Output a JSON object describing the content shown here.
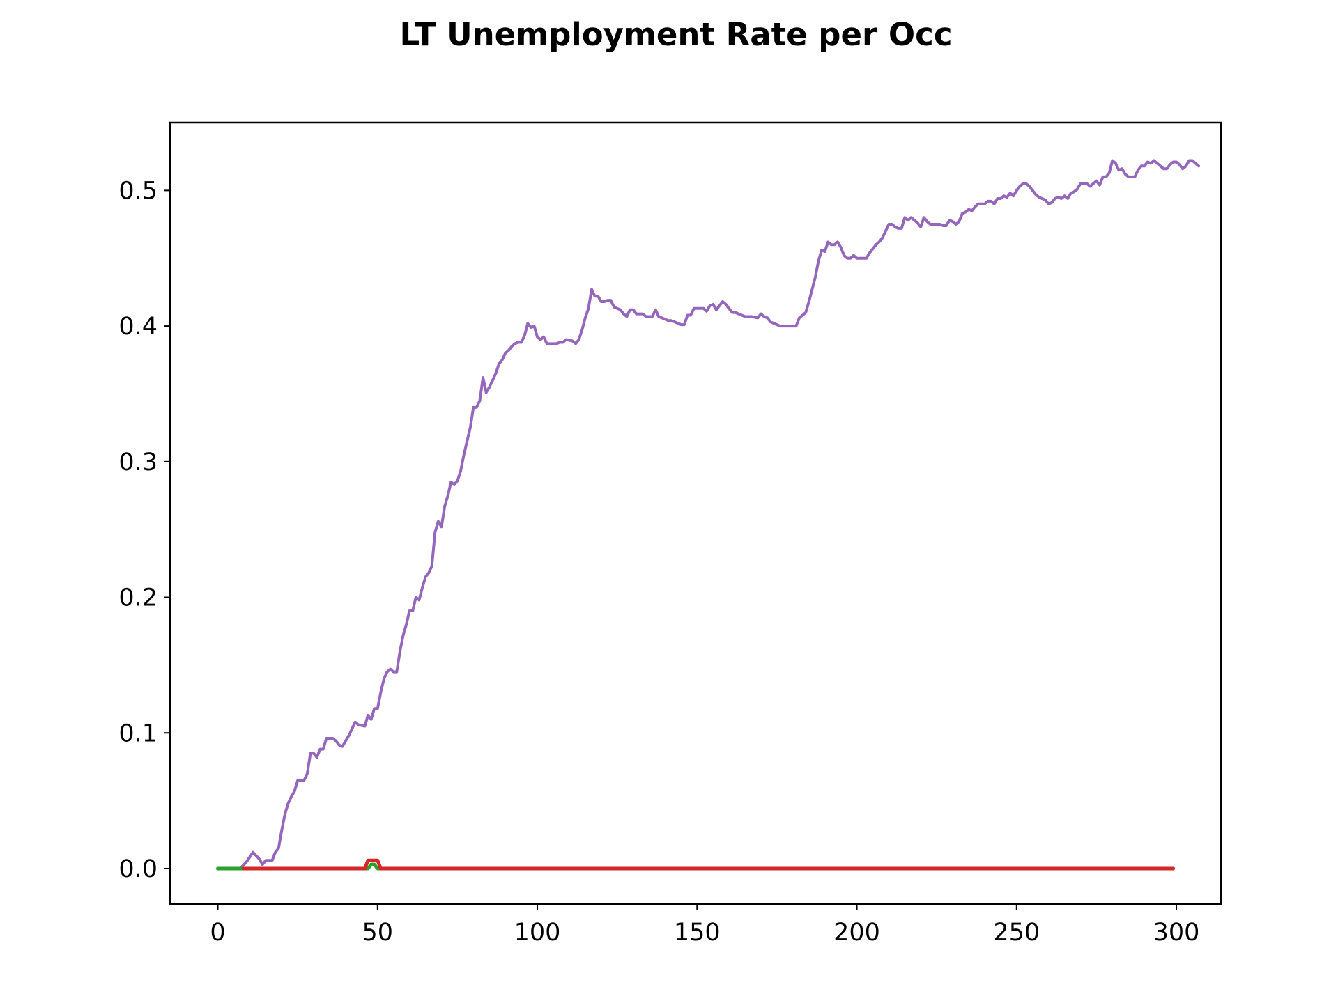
{
  "chart_data": {
    "type": "line",
    "title": "LT Unemployment Rate per Occ",
    "xlabel": "",
    "ylabel": "",
    "xlim": [
      -14.95,
      313.95
    ],
    "ylim": [
      -0.0262,
      0.55
    ],
    "x_ticks": [
      0,
      50,
      100,
      150,
      200,
      250,
      300
    ],
    "y_ticks": [
      0.0,
      0.1,
      0.2,
      0.3,
      0.4,
      0.5
    ],
    "grid": false,
    "legend": "none",
    "series": [
      {
        "color": "#9467bd",
        "points": [
          [
            0,
            0.0
          ],
          [
            7,
            0.0
          ],
          [
            9,
            0.005
          ],
          [
            11,
            0.012
          ],
          [
            13,
            0.007
          ],
          [
            14,
            0.003
          ],
          [
            15,
            0.006
          ],
          [
            17,
            0.006
          ],
          [
            18,
            0.012
          ],
          [
            19,
            0.015
          ],
          [
            20,
            0.028
          ],
          [
            21,
            0.04
          ],
          [
            22,
            0.048
          ],
          [
            23,
            0.053
          ],
          [
            24,
            0.057
          ],
          [
            25,
            0.065
          ],
          [
            27,
            0.065
          ],
          [
            28,
            0.07
          ],
          [
            29,
            0.085
          ],
          [
            30,
            0.085
          ],
          [
            31,
            0.082
          ],
          [
            32,
            0.088
          ],
          [
            33,
            0.088
          ],
          [
            34,
            0.096
          ],
          [
            36,
            0.096
          ],
          [
            37,
            0.094
          ],
          [
            38,
            0.091
          ],
          [
            39,
            0.09
          ],
          [
            40,
            0.094
          ],
          [
            41,
            0.098
          ],
          [
            42,
            0.103
          ],
          [
            43,
            0.108
          ],
          [
            44,
            0.106
          ],
          [
            46,
            0.105
          ],
          [
            47,
            0.113
          ],
          [
            48,
            0.11
          ],
          [
            49,
            0.118
          ],
          [
            50,
            0.118
          ],
          [
            51,
            0.13
          ],
          [
            52,
            0.14
          ],
          [
            53,
            0.145
          ],
          [
            54,
            0.147
          ],
          [
            55,
            0.145
          ],
          [
            56,
            0.145
          ],
          [
            57,
            0.16
          ],
          [
            58,
            0.172
          ],
          [
            59,
            0.18
          ],
          [
            60,
            0.19
          ],
          [
            61,
            0.19
          ],
          [
            62,
            0.2
          ],
          [
            63,
            0.198
          ],
          [
            64,
            0.207
          ],
          [
            65,
            0.215
          ],
          [
            66,
            0.218
          ],
          [
            67,
            0.223
          ],
          [
            68,
            0.248
          ],
          [
            69,
            0.256
          ],
          [
            70,
            0.252
          ],
          [
            71,
            0.267
          ],
          [
            72,
            0.275
          ],
          [
            73,
            0.285
          ],
          [
            74,
            0.283
          ],
          [
            75,
            0.286
          ],
          [
            76,
            0.293
          ],
          [
            77,
            0.305
          ],
          [
            78,
            0.315
          ],
          [
            79,
            0.325
          ],
          [
            80,
            0.34
          ],
          [
            81,
            0.34
          ],
          [
            82,
            0.345
          ],
          [
            83,
            0.362
          ],
          [
            84,
            0.351
          ],
          [
            85,
            0.355
          ],
          [
            86,
            0.36
          ],
          [
            87,
            0.365
          ],
          [
            88,
            0.372
          ],
          [
            89,
            0.375
          ],
          [
            90,
            0.38
          ],
          [
            91,
            0.382
          ],
          [
            92,
            0.385
          ],
          [
            93,
            0.387
          ],
          [
            94,
            0.388
          ],
          [
            95,
            0.388
          ],
          [
            96,
            0.393
          ],
          [
            97,
            0.402
          ],
          [
            98,
            0.399
          ],
          [
            99,
            0.4
          ],
          [
            100,
            0.392
          ],
          [
            101,
            0.39
          ],
          [
            102,
            0.392
          ],
          [
            103,
            0.387
          ],
          [
            106,
            0.387
          ],
          [
            107,
            0.388
          ],
          [
            108,
            0.388
          ],
          [
            109,
            0.39
          ],
          [
            111,
            0.389
          ],
          [
            112,
            0.387
          ],
          [
            113,
            0.39
          ],
          [
            114,
            0.397
          ],
          [
            115,
            0.406
          ],
          [
            116,
            0.413
          ],
          [
            117,
            0.427
          ],
          [
            118,
            0.422
          ],
          [
            119,
            0.422
          ],
          [
            120,
            0.418
          ],
          [
            121,
            0.418
          ],
          [
            122,
            0.419
          ],
          [
            123,
            0.419
          ],
          [
            124,
            0.414
          ],
          [
            125,
            0.413
          ],
          [
            126,
            0.412
          ],
          [
            127,
            0.409
          ],
          [
            128,
            0.407
          ],
          [
            129,
            0.412
          ],
          [
            130,
            0.412
          ],
          [
            131,
            0.409
          ],
          [
            133,
            0.409
          ],
          [
            134,
            0.407
          ],
          [
            136,
            0.407
          ],
          [
            137,
            0.412
          ],
          [
            138,
            0.407
          ],
          [
            139,
            0.406
          ],
          [
            140,
            0.405
          ],
          [
            141,
            0.404
          ],
          [
            142,
            0.404
          ],
          [
            143,
            0.403
          ],
          [
            144,
            0.402
          ],
          [
            145,
            0.401
          ],
          [
            146,
            0.401
          ],
          [
            147,
            0.408
          ],
          [
            148,
            0.408
          ],
          [
            149,
            0.413
          ],
          [
            150,
            0.413
          ],
          [
            152,
            0.413
          ],
          [
            153,
            0.411
          ],
          [
            154,
            0.415
          ],
          [
            155,
            0.416
          ],
          [
            156,
            0.412
          ],
          [
            157,
            0.415
          ],
          [
            158,
            0.418
          ],
          [
            159,
            0.416
          ],
          [
            160,
            0.413
          ],
          [
            161,
            0.41
          ],
          [
            162,
            0.41
          ],
          [
            164,
            0.408
          ],
          [
            165,
            0.407
          ],
          [
            167,
            0.407
          ],
          [
            169,
            0.406
          ],
          [
            170,
            0.409
          ],
          [
            171,
            0.407
          ],
          [
            172,
            0.406
          ],
          [
            173,
            0.403
          ],
          [
            175,
            0.401
          ],
          [
            176,
            0.4
          ],
          [
            181,
            0.4
          ],
          [
            182,
            0.406
          ],
          [
            183,
            0.408
          ],
          [
            184,
            0.41
          ],
          [
            185,
            0.418
          ],
          [
            186,
            0.427
          ],
          [
            187,
            0.436
          ],
          [
            188,
            0.448
          ],
          [
            189,
            0.456
          ],
          [
            190,
            0.455
          ],
          [
            191,
            0.462
          ],
          [
            192,
            0.46
          ],
          [
            193,
            0.46
          ],
          [
            194,
            0.462
          ],
          [
            195,
            0.458
          ],
          [
            196,
            0.452
          ],
          [
            197,
            0.45
          ],
          [
            198,
            0.45
          ],
          [
            199,
            0.452
          ],
          [
            200,
            0.45
          ],
          [
            203,
            0.45
          ],
          [
            204,
            0.454
          ],
          [
            205,
            0.457
          ],
          [
            206,
            0.46
          ],
          [
            207,
            0.462
          ],
          [
            208,
            0.465
          ],
          [
            209,
            0.47
          ],
          [
            210,
            0.475
          ],
          [
            211,
            0.475
          ],
          [
            212,
            0.473
          ],
          [
            213,
            0.472
          ],
          [
            214,
            0.472
          ],
          [
            215,
            0.48
          ],
          [
            216,
            0.478
          ],
          [
            217,
            0.48
          ],
          [
            218,
            0.478
          ],
          [
            219,
            0.476
          ],
          [
            220,
            0.473
          ],
          [
            221,
            0.48
          ],
          [
            222,
            0.477
          ],
          [
            223,
            0.475
          ],
          [
            226,
            0.475
          ],
          [
            227,
            0.474
          ],
          [
            228,
            0.474
          ],
          [
            229,
            0.478
          ],
          [
            230,
            0.477
          ],
          [
            231,
            0.475
          ],
          [
            232,
            0.477
          ],
          [
            233,
            0.483
          ],
          [
            234,
            0.484
          ],
          [
            235,
            0.486
          ],
          [
            236,
            0.485
          ],
          [
            237,
            0.488
          ],
          [
            238,
            0.49
          ],
          [
            240,
            0.49
          ],
          [
            241,
            0.492
          ],
          [
            242,
            0.492
          ],
          [
            243,
            0.49
          ],
          [
            244,
            0.494
          ],
          [
            245,
            0.494
          ],
          [
            246,
            0.496
          ],
          [
            247,
            0.495
          ],
          [
            248,
            0.498
          ],
          [
            249,
            0.496
          ],
          [
            250,
            0.5
          ],
          [
            251,
            0.503
          ],
          [
            252,
            0.505
          ],
          [
            253,
            0.505
          ],
          [
            254,
            0.503
          ],
          [
            255,
            0.5
          ],
          [
            256,
            0.497
          ],
          [
            257,
            0.495
          ],
          [
            259,
            0.493
          ],
          [
            260,
            0.49
          ],
          [
            261,
            0.491
          ],
          [
            262,
            0.494
          ],
          [
            263,
            0.495
          ],
          [
            264,
            0.494
          ],
          [
            265,
            0.496
          ],
          [
            266,
            0.494
          ],
          [
            267,
            0.498
          ],
          [
            268,
            0.499
          ],
          [
            269,
            0.501
          ],
          [
            270,
            0.505
          ],
          [
            271,
            0.505
          ],
          [
            272,
            0.505
          ],
          [
            273,
            0.503
          ],
          [
            274,
            0.505
          ],
          [
            275,
            0.507
          ],
          [
            276,
            0.504
          ],
          [
            277,
            0.51
          ],
          [
            278,
            0.51
          ],
          [
            279,
            0.513
          ],
          [
            280,
            0.522
          ],
          [
            281,
            0.52
          ],
          [
            282,
            0.515
          ],
          [
            283,
            0.516
          ],
          [
            284,
            0.512
          ],
          [
            285,
            0.51
          ],
          [
            287,
            0.51
          ],
          [
            288,
            0.515
          ],
          [
            289,
            0.518
          ],
          [
            290,
            0.518
          ],
          [
            291,
            0.521
          ],
          [
            292,
            0.52
          ],
          [
            293,
            0.522
          ],
          [
            294,
            0.52
          ],
          [
            295,
            0.518
          ],
          [
            296,
            0.516
          ],
          [
            297,
            0.516
          ],
          [
            298,
            0.519
          ],
          [
            299,
            0.521
          ],
          [
            300,
            0.521
          ],
          [
            301,
            0.519
          ],
          [
            302,
            0.516
          ],
          [
            303,
            0.518
          ],
          [
            304,
            0.522
          ],
          [
            305,
            0.522
          ],
          [
            306,
            0.52
          ],
          [
            307,
            0.518
          ]
        ]
      },
      {
        "color": "#2ca02c",
        "points": [
          [
            0,
            0.0
          ],
          [
            47,
            0.0
          ],
          [
            48,
            0.003
          ],
          [
            49,
            0.003
          ],
          [
            50,
            0.0
          ],
          [
            299,
            0.0
          ]
        ]
      },
      {
        "color": "#d62728",
        "points": [
          [
            8,
            0.0
          ],
          [
            46,
            0.0
          ],
          [
            47,
            0.006
          ],
          [
            50,
            0.006
          ],
          [
            51,
            0.0
          ],
          [
            299,
            0.0
          ]
        ]
      }
    ]
  }
}
